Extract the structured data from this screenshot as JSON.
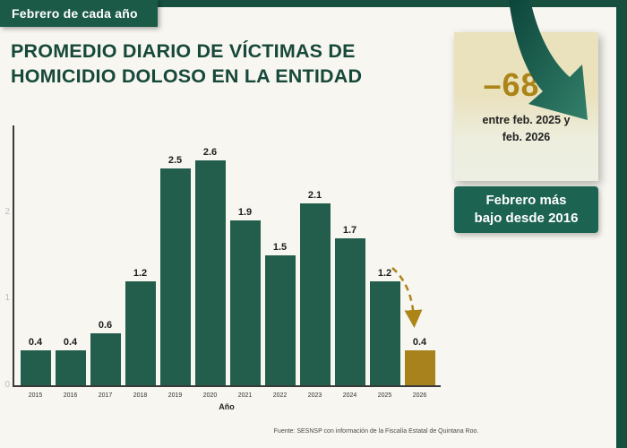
{
  "ribbon": {
    "label": "Febrero de cada año"
  },
  "title": {
    "line1": "PROMEDIO DIARIO DE VÍCTIMAS DE",
    "line2": "HOMICIDIO DOLOSO EN LA ENTIDAD"
  },
  "highlight": {
    "percent": "–68%",
    "caption_line1": "entre feb. 2025 y",
    "caption_line2": "feb. 2026",
    "badge_line1": "Febrero más",
    "badge_line2": "bajo desde 2016"
  },
  "chart_data": {
    "type": "bar",
    "title": "Promedio diario de víctimas de homicidio doloso en la entidad (febrero de cada año)",
    "categories": [
      "2015",
      "2016",
      "2017",
      "2018",
      "2019",
      "2020",
      "2021",
      "2022",
      "2023",
      "2024",
      "2025",
      "2026"
    ],
    "values": [
      0.4,
      0.4,
      0.6,
      1.2,
      2.5,
      2.6,
      1.9,
      1.5,
      2.1,
      1.7,
      1.2,
      0.4
    ],
    "xlabel": "Año",
    "ylabel": "",
    "ylim": [
      0,
      3
    ],
    "yticks": [
      0,
      1,
      2
    ],
    "bar_color": "#235e4c",
    "highlight_index": 11,
    "highlight_color": "#a8831d",
    "annotation": "dashed decline arrow from 2025 bar to 2026 bar",
    "grid": false,
    "legend_position": "none"
  },
  "footer": {
    "source": "Fuente: SESNSP con información de la Fiscalía Estatal de Quintana Roo."
  },
  "colors": {
    "accent_green": "#17503f",
    "ribbon_green": "#1c5a48",
    "badge_teal": "#1c6352",
    "gold": "#ac8418",
    "card_cream": "#eae1bd"
  }
}
